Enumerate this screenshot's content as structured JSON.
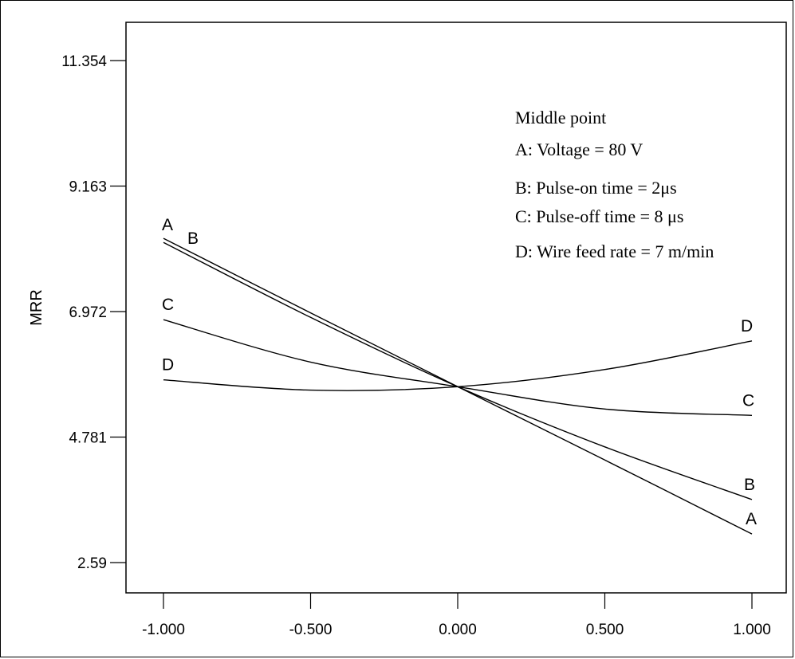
{
  "chart_data": {
    "type": "line",
    "ylabel": "MRR",
    "xlabel": "",
    "xlim": [
      -1.0,
      1.0
    ],
    "ylim": [
      2.59,
      11.354
    ],
    "x_ticks": [
      -1.0,
      -0.5,
      0.0,
      0.5,
      1.0
    ],
    "x_tick_labels": [
      "-1.000",
      "-0.500",
      "0.000",
      "0.500",
      "1.000"
    ],
    "y_ticks": [
      2.59,
      4.781,
      6.972,
      9.163,
      11.354
    ],
    "y_tick_labels": [
      "2.59",
      "4.781",
      "6.972",
      "9.163",
      "11.354"
    ],
    "legend": {
      "title": "Middle point",
      "entries": [
        "A: Voltage = 80 V",
        "B: Pulse-on time = 2μs",
        "C: Pulse-off time = 8 μs",
        "D: Wire feed rate = 7 m/min"
      ],
      "placement": "top-right"
    },
    "series": [
      {
        "name": "A",
        "x": [
          -1.0,
          -0.5,
          0.0,
          0.5,
          1.0
        ],
        "y": [
          8.25,
          6.95,
          5.66,
          4.38,
          3.09
        ]
      },
      {
        "name": "B",
        "x": [
          -1.0,
          -0.5,
          0.0,
          0.5,
          1.0
        ],
        "y": [
          8.18,
          6.87,
          5.66,
          4.61,
          3.69
        ]
      },
      {
        "name": "C",
        "x": [
          -1.0,
          -0.5,
          0.0,
          0.5,
          1.0
        ],
        "y": [
          6.83,
          6.09,
          5.66,
          5.27,
          5.16
        ]
      },
      {
        "name": "D",
        "x": [
          -1.0,
          -0.5,
          0.0,
          0.5,
          1.0
        ],
        "y": [
          5.78,
          5.6,
          5.66,
          5.96,
          6.46
        ]
      }
    ]
  }
}
